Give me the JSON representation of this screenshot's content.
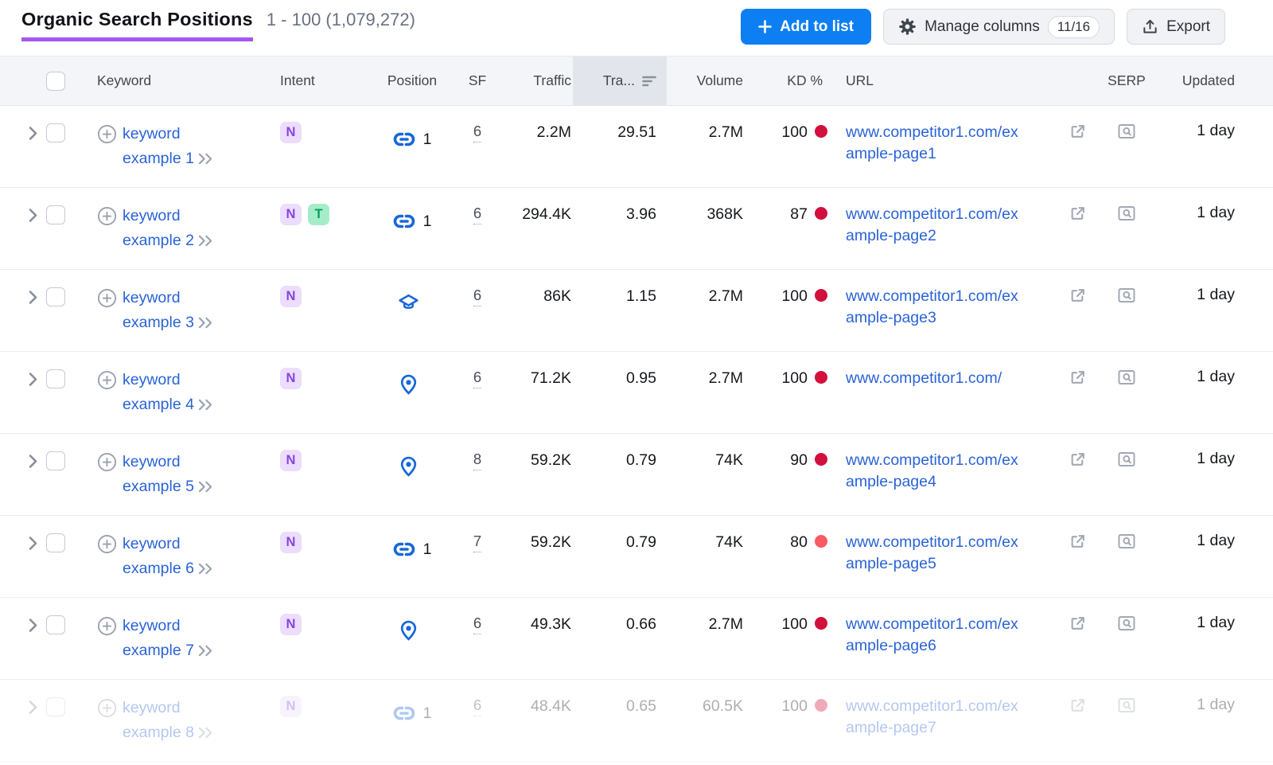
{
  "header": {
    "title": "Organic Search Positions",
    "range": "1 - 100 (1,079,272)",
    "buttons": {
      "add_to_list": "Add to list",
      "manage_columns": "Manage columns",
      "columns_count": "11/16",
      "export": "Export"
    }
  },
  "colors": {
    "title_underline": "#a457f0",
    "primary_button": "#0d7ff2",
    "link_blue": "#2a63d6",
    "position_icon_blue": "#1667d9",
    "kd_dot_red": "#d2103c",
    "kd_dot_light_red": "#fb5a63",
    "intent_n_bg": "#ebddfb",
    "intent_n_text": "#8743e3",
    "intent_t_bg": "#a5edc9",
    "intent_t_text": "#089e68"
  },
  "table": {
    "columns": {
      "keyword": "Keyword",
      "intent": "Intent",
      "position": "Position",
      "sf": "SF",
      "traffic": "Traffic",
      "traffic_sorted": "Tra...",
      "volume": "Volume",
      "kd": "KD %",
      "url": "URL",
      "serp": "SERP",
      "updated": "Updated"
    },
    "rows": [
      {
        "keyword": "keyword example 1",
        "intents": [
          {
            "label": "N",
            "type": "n"
          }
        ],
        "position_type": "link",
        "position_value": "1",
        "sf": "6",
        "traffic": "2.2M",
        "traffic_pct": "29.51",
        "volume": "2.7M",
        "kd": "100",
        "kd_level": "dark",
        "url": "www.competitor1.com/example-page1",
        "updated": "1 day",
        "faded": false
      },
      {
        "keyword": "keyword example 2",
        "intents": [
          {
            "label": "N",
            "type": "n"
          },
          {
            "label": "T",
            "type": "t"
          }
        ],
        "position_type": "link",
        "position_value": "1",
        "sf": "6",
        "traffic": "294.4K",
        "traffic_pct": "3.96",
        "volume": "368K",
        "kd": "87",
        "kd_level": "dark",
        "url": "www.competitor1.com/example-page2",
        "updated": "1 day",
        "faded": false
      },
      {
        "keyword": "keyword example 3",
        "intents": [
          {
            "label": "N",
            "type": "n"
          }
        ],
        "position_type": "cap",
        "position_value": "",
        "sf": "6",
        "traffic": "86K",
        "traffic_pct": "1.15",
        "volume": "2.7M",
        "kd": "100",
        "kd_level": "dark",
        "url": "www.competitor1.com/example-page3",
        "updated": "1 day",
        "faded": false
      },
      {
        "keyword": "keyword example 4",
        "intents": [
          {
            "label": "N",
            "type": "n"
          }
        ],
        "position_type": "pin",
        "position_value": "",
        "sf": "6",
        "traffic": "71.2K",
        "traffic_pct": "0.95",
        "volume": "2.7M",
        "kd": "100",
        "kd_level": "dark",
        "url": "www.competitor1.com/",
        "updated": "1 day",
        "faded": false
      },
      {
        "keyword": "keyword example 5",
        "intents": [
          {
            "label": "N",
            "type": "n"
          }
        ],
        "position_type": "pin",
        "position_value": "",
        "sf": "8",
        "traffic": "59.2K",
        "traffic_pct": "0.79",
        "volume": "74K",
        "kd": "90",
        "kd_level": "dark",
        "url": "www.competitor1.com/example-page4",
        "updated": "1 day",
        "faded": false
      },
      {
        "keyword": "keyword example 6",
        "intents": [
          {
            "label": "N",
            "type": "n"
          }
        ],
        "position_type": "link",
        "position_value": "1",
        "sf": "7",
        "traffic": "59.2K",
        "traffic_pct": "0.79",
        "volume": "74K",
        "kd": "80",
        "kd_level": "light",
        "url": "www.competitor1.com/example-page5",
        "updated": "1 day",
        "faded": false
      },
      {
        "keyword": "keyword example 7",
        "intents": [
          {
            "label": "N",
            "type": "n"
          }
        ],
        "position_type": "pin",
        "position_value": "",
        "sf": "6",
        "traffic": "49.3K",
        "traffic_pct": "0.66",
        "volume": "2.7M",
        "kd": "100",
        "kd_level": "dark",
        "url": "www.competitor1.com/example-page6",
        "updated": "1 day",
        "faded": false
      },
      {
        "keyword": "keyword example 8",
        "intents": [
          {
            "label": "N",
            "type": "n"
          }
        ],
        "position_type": "link",
        "position_value": "1",
        "sf": "6",
        "traffic": "48.4K",
        "traffic_pct": "0.65",
        "volume": "60.5K",
        "kd": "100",
        "kd_level": "dark",
        "url": "www.competitor1.com/example-page7",
        "updated": "1 day",
        "faded": true
      }
    ]
  }
}
